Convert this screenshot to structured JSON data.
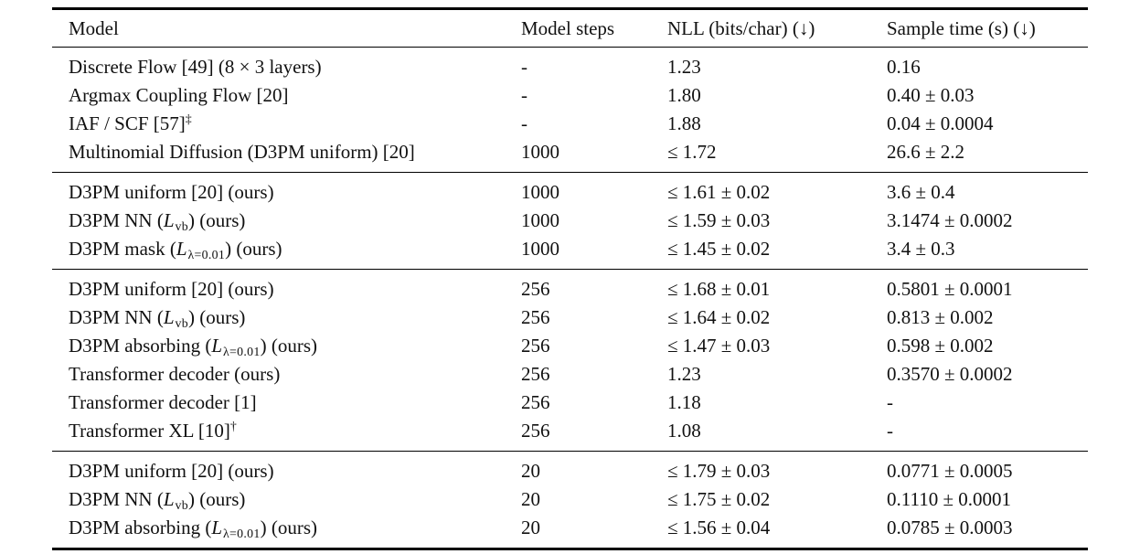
{
  "table": {
    "columns": [
      "Model",
      "Model steps",
      "NLL (bits/char) (↓)",
      "Sample time (s) (↓)"
    ],
    "groups": [
      {
        "rows": [
          {
            "model": [
              {
                "t": "Discrete Flow [49] (8 × 3 layers)"
              }
            ],
            "steps": "-",
            "nll": "1.23",
            "sample_time": "0.16"
          },
          {
            "model": [
              {
                "t": "Argmax Coupling Flow [20]"
              }
            ],
            "steps": "-",
            "nll": "1.80",
            "sample_time": "0.40 ± 0.03"
          },
          {
            "model": [
              {
                "t": "IAF / SCF [57]"
              },
              {
                "t": "‡",
                "style": "sup"
              }
            ],
            "steps": "-",
            "nll": "1.88",
            "sample_time": "0.04 ± 0.0004"
          },
          {
            "model": [
              {
                "t": "Multinomial Diffusion (D3PM uniform) [20]"
              }
            ],
            "steps": "1000",
            "nll": "≤ 1.72",
            "sample_time": "26.6 ± 2.2"
          }
        ]
      },
      {
        "rows": [
          {
            "model": [
              {
                "t": "D3PM uniform [20] (ours)"
              }
            ],
            "steps": "1000",
            "nll": "≤ 1.61 ± 0.02",
            "sample_time": "3.6 ± 0.4"
          },
          {
            "model": [
              {
                "t": "D3PM NN ("
              },
              {
                "t": "L",
                "style": "mathit"
              },
              {
                "t": "vb",
                "style": "sub"
              },
              {
                "t": ") (ours)"
              }
            ],
            "steps": "1000",
            "nll": "≤ 1.59 ± 0.03",
            "sample_time": "3.1474 ± 0.0002"
          },
          {
            "model": [
              {
                "t": "D3PM mask ("
              },
              {
                "t": "L",
                "style": "mathit"
              },
              {
                "t": "λ=0.01",
                "style": "sub"
              },
              {
                "t": ") (ours)"
              }
            ],
            "steps": "1000",
            "nll": "≤ 1.45 ± 0.02",
            "sample_time": "3.4 ± 0.3"
          }
        ]
      },
      {
        "rows": [
          {
            "model": [
              {
                "t": "D3PM uniform [20] (ours)"
              }
            ],
            "steps": "256",
            "nll": "≤ 1.68 ± 0.01",
            "sample_time": "0.5801 ± 0.0001"
          },
          {
            "model": [
              {
                "t": "D3PM NN ("
              },
              {
                "t": "L",
                "style": "mathit"
              },
              {
                "t": "vb",
                "style": "sub"
              },
              {
                "t": ") (ours)"
              }
            ],
            "steps": "256",
            "nll": "≤ 1.64 ± 0.02",
            "sample_time": "0.813 ± 0.002"
          },
          {
            "model": [
              {
                "t": "D3PM absorbing ("
              },
              {
                "t": "L",
                "style": "mathit"
              },
              {
                "t": "λ=0.01",
                "style": "sub"
              },
              {
                "t": ") (ours)"
              }
            ],
            "steps": "256",
            "nll": "≤ 1.47 ± 0.03",
            "sample_time": "0.598 ± 0.002"
          },
          {
            "model": [
              {
                "t": "Transformer decoder (ours)"
              }
            ],
            "steps": "256",
            "nll": "1.23",
            "sample_time": "0.3570 ± 0.0002"
          },
          {
            "model": [
              {
                "t": "Transformer decoder [1]"
              }
            ],
            "steps": "256",
            "nll": "1.18",
            "sample_time": "-"
          },
          {
            "model": [
              {
                "t": "Transformer XL [10]"
              },
              {
                "t": "†",
                "style": "sup"
              }
            ],
            "steps": "256",
            "nll": "1.08",
            "sample_time": "-"
          }
        ]
      },
      {
        "rows": [
          {
            "model": [
              {
                "t": "D3PM uniform [20] (ours)"
              }
            ],
            "steps": "20",
            "nll": "≤ 1.79 ± 0.03",
            "sample_time": "0.0771 ± 0.0005"
          },
          {
            "model": [
              {
                "t": "D3PM NN ("
              },
              {
                "t": "L",
                "style": "mathit"
              },
              {
                "t": "vb",
                "style": "sub"
              },
              {
                "t": ") (ours)"
              }
            ],
            "steps": "20",
            "nll": "≤ 1.75 ± 0.02",
            "sample_time": "0.1110 ± 0.0001"
          },
          {
            "model": [
              {
                "t": "D3PM absorbing ("
              },
              {
                "t": "L",
                "style": "mathit"
              },
              {
                "t": "λ=0.01",
                "style": "sub"
              },
              {
                "t": ") (ours)"
              }
            ],
            "steps": "20",
            "nll": "≤ 1.56 ± 0.04",
            "sample_time": "0.0785 ± 0.0003"
          }
        ]
      }
    ]
  }
}
